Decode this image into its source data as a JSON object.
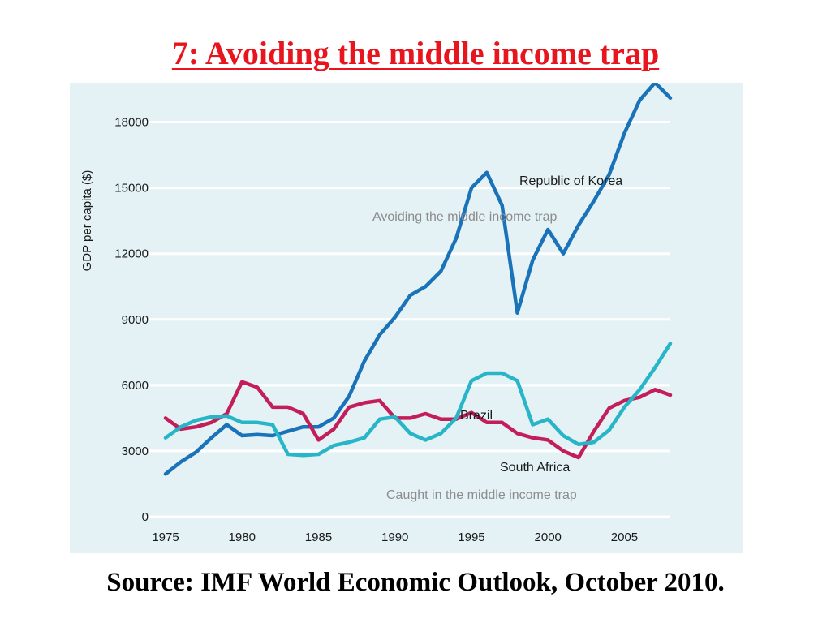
{
  "slide": {
    "title": "7: Avoiding the middle income trap",
    "source": "Source: IMF World Economic Outlook, October 2010."
  },
  "colors": {
    "title": "#e8141e",
    "panel_background": "#e4f2f6",
    "gridline": "#ffffff",
    "korea": "#1a72b8",
    "brazil": "#c41e5a",
    "south_africa": "#27b5c7",
    "annotation": "#8c8c8c",
    "label_text": "#1a1a1a"
  },
  "chart_data": {
    "type": "line",
    "ylabel": "GDP per capita ($)",
    "xlabel": "",
    "xlim": [
      1975,
      2008
    ],
    "ylim": [
      0,
      19500
    ],
    "x_ticks": [
      1975,
      1980,
      1985,
      1990,
      1995,
      2000,
      2005
    ],
    "y_ticks": [
      0,
      3000,
      6000,
      9000,
      12000,
      15000,
      18000
    ],
    "grid": "horizontal",
    "x": [
      1975,
      1976,
      1977,
      1978,
      1979,
      1980,
      1981,
      1982,
      1983,
      1984,
      1985,
      1986,
      1987,
      1988,
      1989,
      1990,
      1991,
      1992,
      1993,
      1994,
      1995,
      1996,
      1997,
      1998,
      1999,
      2000,
      2001,
      2002,
      2003,
      2004,
      2005,
      2006,
      2007,
      2008
    ],
    "series": [
      {
        "name": "Republic of Korea",
        "color_key": "korea",
        "values": [
          1950,
          2500,
          2950,
          3600,
          4200,
          3700,
          3750,
          3700,
          3900,
          4100,
          4100,
          4500,
          5500,
          7100,
          8300,
          9100,
          10100,
          10500,
          11200,
          12700,
          15000,
          15700,
          14200,
          9300,
          11700,
          13100,
          12000,
          13300,
          14400,
          15600,
          17500,
          19000,
          19800,
          19100
        ]
      },
      {
        "name": "Brazil",
        "color_key": "brazil",
        "values": [
          4500,
          4000,
          4100,
          4300,
          4700,
          6150,
          5900,
          5000,
          5000,
          4700,
          3500,
          4000,
          5000,
          5200,
          5300,
          4500,
          4500,
          4700,
          4450,
          4450,
          4750,
          4300,
          4300,
          3800,
          3600,
          3500,
          3000,
          2700,
          3900,
          4950,
          5300,
          5450,
          5800,
          5550
        ]
      },
      {
        "name": "South Africa",
        "color_key": "south_africa",
        "values": [
          3600,
          4100,
          4400,
          4550,
          4600,
          4300,
          4300,
          4200,
          2850,
          2800,
          2850,
          3250,
          3400,
          3600,
          4450,
          4550,
          3800,
          3500,
          3800,
          4500,
          6200,
          6550,
          6550,
          6200,
          4200,
          4450,
          3700,
          3300,
          3400,
          3950,
          5000,
          5800,
          6800,
          7900
        ]
      }
    ],
    "series_labels": [
      "Republic of Korea",
      "Brazil",
      "South Africa"
    ],
    "annotations": [
      "Avoiding the middle income trap",
      "Caught in the middle income trap"
    ]
  }
}
